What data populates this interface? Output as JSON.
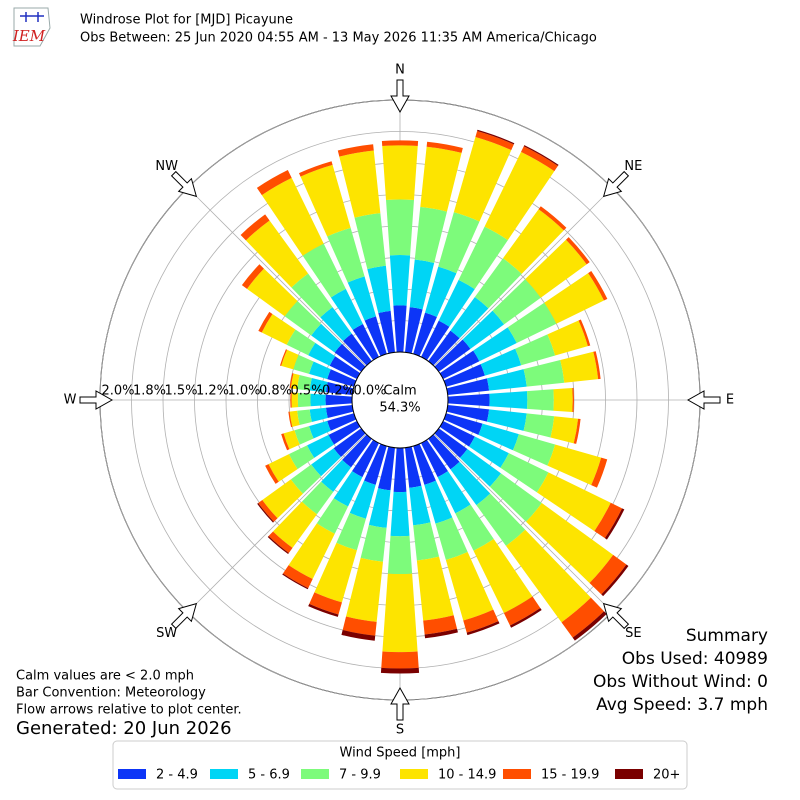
{
  "chart_data": {
    "type": "windrose",
    "title": "Windrose Plot for [MJD] Picayune",
    "subtitle": "Obs Between: 25 Jun 2020 04:55 AM - 13 May 2026 11:35 AM America/Chicago",
    "logo": "IEM",
    "directions": [
      0,
      10,
      20,
      30,
      40,
      50,
      60,
      70,
      80,
      90,
      100,
      110,
      120,
      130,
      140,
      150,
      160,
      170,
      180,
      190,
      200,
      210,
      220,
      230,
      240,
      250,
      260,
      270,
      280,
      290,
      300,
      310,
      320,
      330,
      340,
      350
    ],
    "compass": [
      "N",
      "NE",
      "E",
      "SE",
      "S",
      "SW",
      "W",
      "NW"
    ],
    "rlim": [
      0,
      2.0
    ],
    "rticks": [
      {
        "value": 0,
        "label": "0.0%"
      },
      {
        "value": 0.25,
        "label": "0.2%"
      },
      {
        "value": 0.5,
        "label": "0.5%"
      },
      {
        "value": 0.75,
        "label": "0.8%"
      },
      {
        "value": 1.0,
        "label": "1.0%"
      },
      {
        "value": 1.25,
        "label": "1.2%"
      },
      {
        "value": 1.5,
        "label": "1.5%"
      },
      {
        "value": 1.75,
        "label": "1.8%"
      },
      {
        "value": 2.0,
        "label": "2.0%"
      }
    ],
    "calm_label": "Calm",
    "calm_value": 54.3,
    "calm_value_label": "54.3%",
    "legend_title": "Wind Speed [mph]",
    "series": [
      {
        "name": "2 - 4.9",
        "color": "#0d35f7",
        "values": [
          0.37,
          0.36,
          0.34,
          0.32,
          0.3,
          0.31,
          0.32,
          0.32,
          0.33,
          0.33,
          0.33,
          0.3,
          0.28,
          0.28,
          0.3,
          0.3,
          0.32,
          0.32,
          0.35,
          0.34,
          0.32,
          0.3,
          0.28,
          0.27,
          0.25,
          0.22,
          0.21,
          0.21,
          0.21,
          0.22,
          0.24,
          0.26,
          0.27,
          0.29,
          0.31,
          0.33
        ]
      },
      {
        "name": "5 - 6.9",
        "color": "#00d5f5",
        "values": [
          0.4,
          0.38,
          0.38,
          0.36,
          0.33,
          0.33,
          0.33,
          0.3,
          0.3,
          0.3,
          0.3,
          0.3,
          0.3,
          0.33,
          0.35,
          0.32,
          0.32,
          0.3,
          0.35,
          0.3,
          0.28,
          0.26,
          0.24,
          0.22,
          0.19,
          0.15,
          0.13,
          0.12,
          0.13,
          0.15,
          0.19,
          0.23,
          0.26,
          0.31,
          0.33,
          0.36
        ]
      },
      {
        "name": "7 - 9.9",
        "color": "#7dfb7b",
        "values": [
          0.44,
          0.42,
          0.45,
          0.47,
          0.38,
          0.36,
          0.35,
          0.28,
          0.3,
          0.21,
          0.22,
          0.3,
          0.35,
          0.4,
          0.4,
          0.33,
          0.3,
          0.28,
          0.3,
          0.27,
          0.26,
          0.24,
          0.22,
          0.2,
          0.16,
          0.12,
          0.1,
          0.1,
          0.1,
          0.13,
          0.19,
          0.26,
          0.33,
          0.4,
          0.4,
          0.42
        ]
      },
      {
        "name": "10 - 14.9",
        "color": "#fde400",
        "values": [
          0.43,
          0.48,
          0.62,
          0.66,
          0.48,
          0.45,
          0.42,
          0.27,
          0.27,
          0.15,
          0.19,
          0.38,
          0.55,
          0.7,
          0.75,
          0.55,
          0.5,
          0.48,
          0.62,
          0.48,
          0.43,
          0.4,
          0.33,
          0.28,
          0.18,
          0.09,
          0.06,
          0.05,
          0.05,
          0.1,
          0.22,
          0.37,
          0.52,
          0.58,
          0.52,
          0.5
        ]
      },
      {
        "name": "15 - 19.9",
        "color": "#ff4e00",
        "values": [
          0.04,
          0.04,
          0.05,
          0.05,
          0.03,
          0.03,
          0.03,
          0.02,
          0.02,
          0.01,
          0.02,
          0.05,
          0.1,
          0.13,
          0.15,
          0.11,
          0.1,
          0.11,
          0.13,
          0.11,
          0.1,
          0.08,
          0.05,
          0.04,
          0.03,
          0.02,
          0.01,
          0.01,
          0.01,
          0.01,
          0.03,
          0.05,
          0.06,
          0.07,
          0.03,
          0.05
        ]
      },
      {
        "name": "20+",
        "color": "#7a0000",
        "values": [
          0,
          0,
          0.01,
          0.01,
          0,
          0,
          0,
          0,
          0,
          0,
          0,
          0,
          0.02,
          0.02,
          0.03,
          0.02,
          0.02,
          0.03,
          0.04,
          0.04,
          0.02,
          0.01,
          0.01,
          0.01,
          0,
          0,
          0,
          0,
          0,
          0,
          0,
          0,
          0,
          0,
          0,
          0
        ]
      }
    ],
    "notes": [
      "Calm values are < 2.0 mph",
      "Bar Convention: Meteorology",
      "Flow arrows relative to plot center."
    ],
    "generated": "Generated: 20 Jun 2026",
    "summary": [
      "Summary",
      "Obs Used: 40989",
      "Obs Without Wind: 0",
      "Avg Speed: 3.7 mph"
    ]
  }
}
